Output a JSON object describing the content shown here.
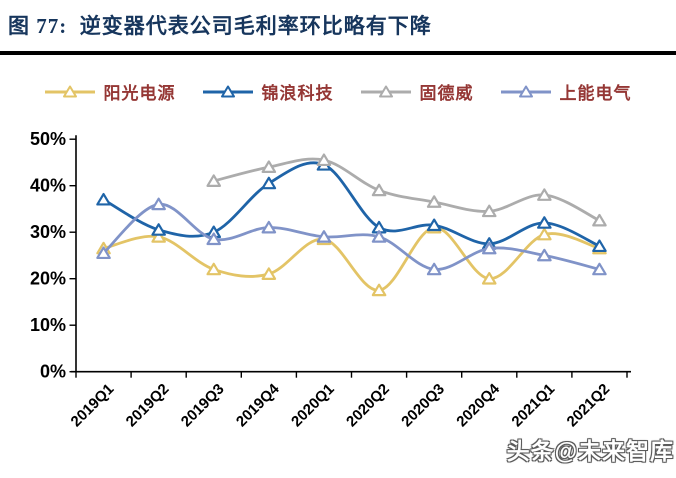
{
  "header": {
    "title": "图 77:  逆变器代表公司毛利率环比略有下降",
    "title_color": "#17365D"
  },
  "watermark": "头条@未来智库",
  "colors": {
    "legend_text": "#953735",
    "axis": "#000000",
    "divider": "#000000",
    "marker_fill": "#ffffff"
  },
  "chart_data": {
    "type": "line",
    "title": "逆变器代表公司毛利率环比略有下降",
    "categories": [
      "2019Q1",
      "2019Q2",
      "2019Q3",
      "2019Q4",
      "2020Q1",
      "2020Q2",
      "2020Q3",
      "2020Q4",
      "2021Q1",
      "2021Q2"
    ],
    "series": [
      {
        "name": "阳光电源",
        "color": "#E3C466",
        "values": [
          26.5,
          29,
          22,
          21,
          28.5,
          17.5,
          31,
          20,
          29.5,
          26.5
        ]
      },
      {
        "name": "锦浪科技",
        "color": "#1F64A8",
        "values": [
          37,
          30.5,
          30,
          40.5,
          44.5,
          31,
          31.5,
          27.5,
          32,
          27
        ]
      },
      {
        "name": "固德威",
        "color": "#ACACAC",
        "values": [
          null,
          null,
          41,
          44,
          45.5,
          39,
          36.5,
          34.5,
          38,
          32.5
        ]
      },
      {
        "name": "上能电气",
        "color": "#8093C8",
        "values": [
          25.5,
          36,
          28.5,
          31,
          29,
          29,
          22,
          26.5,
          25,
          22
        ]
      }
    ],
    "xlabel": "",
    "ylabel": "",
    "ylim": [
      0,
      50
    ],
    "yticks": [
      "0%",
      "10%",
      "20%",
      "30%",
      "40%",
      "50%"
    ],
    "grid": false,
    "legend_position": "top",
    "marker": "triangle",
    "line_style": "smooth"
  }
}
